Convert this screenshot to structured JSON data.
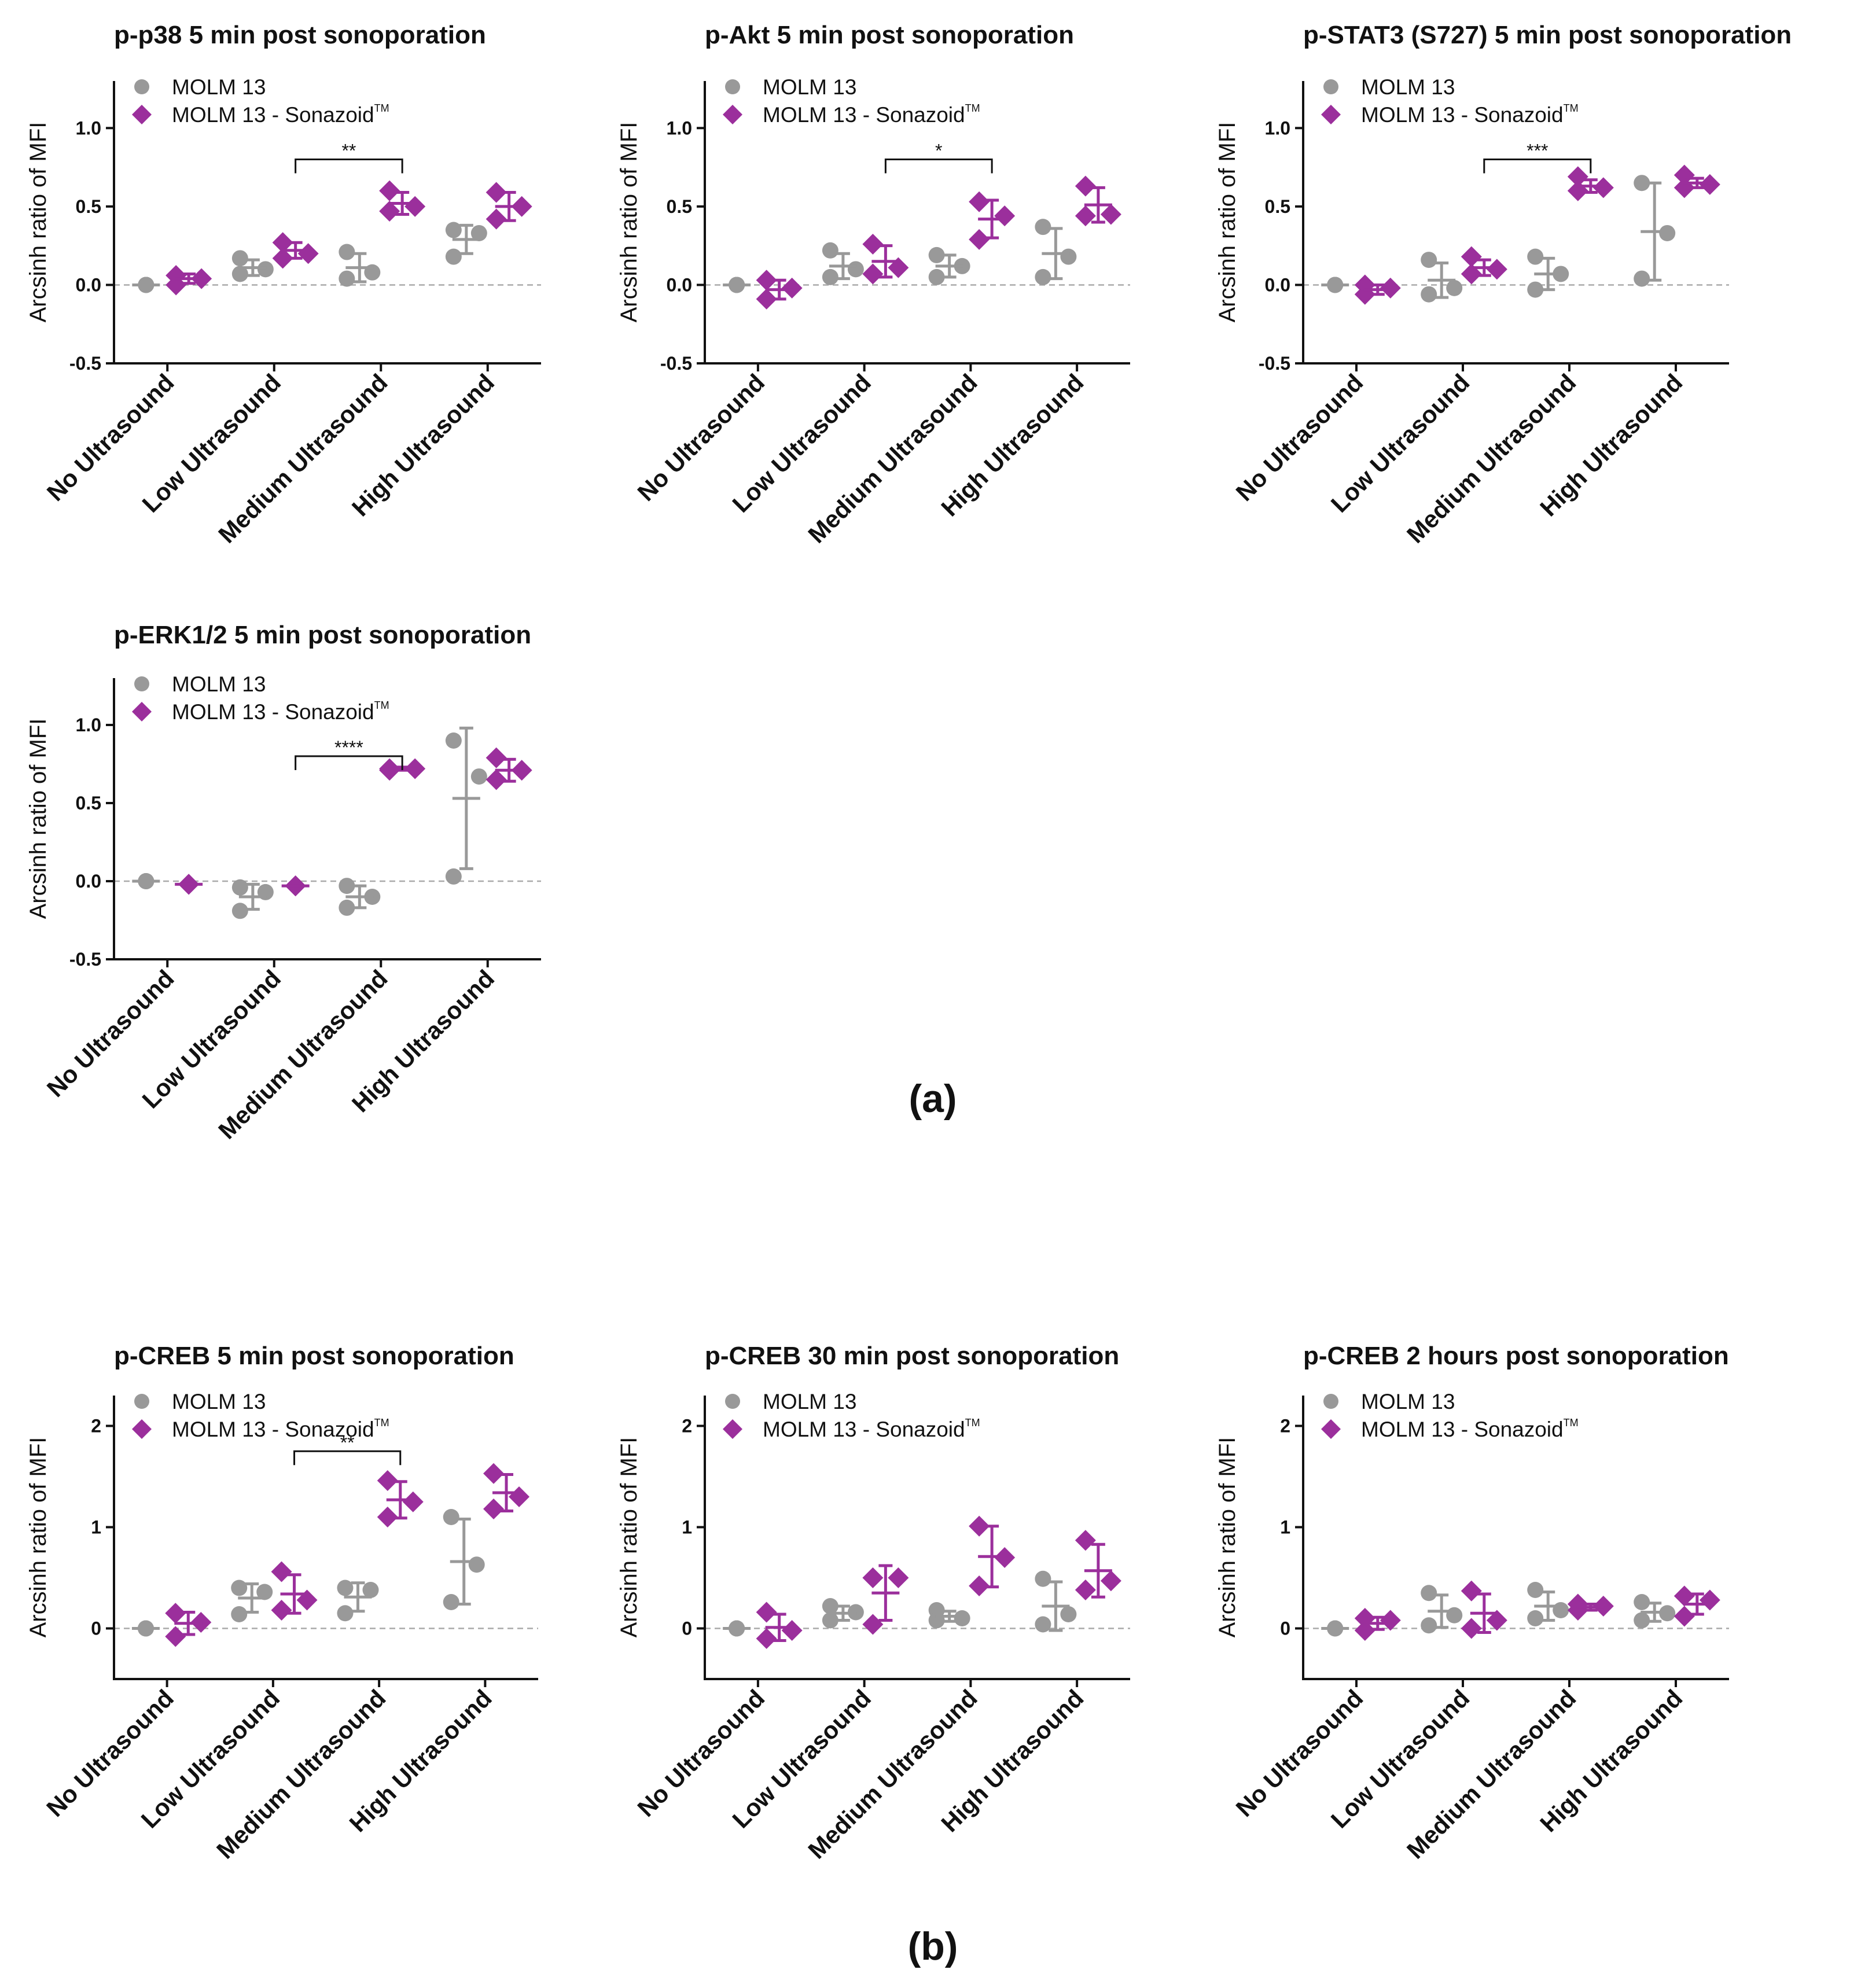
{
  "colors": {
    "molm13": "#999999",
    "sonazoid": "#9b2f9c",
    "zero_line": "#aaaaaa",
    "axis": "#111111"
  },
  "panel_labels": {
    "a": "(a)",
    "b": "(b)"
  },
  "chart_data": [
    {
      "type": "scatter",
      "title": "p-p38 5 min post sonoporation",
      "ylabel": "Arcsinh ratio of MFI",
      "ylim": [
        -0.5,
        1.3
      ],
      "yticks": [
        "-0.5",
        "0.0",
        "0.5",
        "1.0"
      ],
      "yticks_values": [
        -0.5,
        0,
        0.5,
        1.0
      ],
      "categories": [
        "No Ultrasound",
        "Low Ultrasound",
        "Medium Ultrasound",
        "High Ultrasound"
      ],
      "legend": [
        "MOLM 13",
        "MOLM 13 - Sonazoid",
        "TM"
      ],
      "series": [
        {
          "name": "MOLM 13",
          "marker": "circle",
          "points": [
            [
              0.0,
              0.0,
              0.0
            ],
            [
              0.17,
              0.07,
              0.1
            ],
            [
              0.21,
              0.04,
              0.08
            ],
            [
              0.35,
              0.18,
              0.33
            ]
          ],
          "mean": [
            0.0,
            0.11,
            0.11,
            0.29
          ],
          "err": [
            0.0,
            0.05,
            0.09,
            0.09
          ]
        },
        {
          "name": "MOLM 13 - Sonazoid",
          "marker": "diamond",
          "points": [
            [
              0.06,
              0.0,
              0.04
            ],
            [
              0.27,
              0.17,
              0.2
            ],
            [
              0.6,
              0.47,
              0.5
            ],
            [
              0.59,
              0.42,
              0.5
            ]
          ],
          "mean": [
            0.04,
            0.22,
            0.52,
            0.5
          ],
          "err": [
            0.03,
            0.05,
            0.07,
            0.09
          ]
        }
      ],
      "significance": [
        {
          "from": 1,
          "to": 2,
          "label": "**"
        }
      ]
    },
    {
      "type": "scatter",
      "title": "p-Akt 5 min post sonoporation",
      "ylabel": "Arcsinh ratio of MFI",
      "ylim": [
        -0.5,
        1.3
      ],
      "yticks": [
        "-0.5",
        "0.0",
        "0.5",
        "1.0"
      ],
      "yticks_values": [
        -0.5,
        0,
        0.5,
        1.0
      ],
      "categories": [
        "No Ultrasound",
        "Low Ultrasound",
        "Medium Ultrasound",
        "High Ultrasound"
      ],
      "legend": [
        "MOLM 13",
        "MOLM 13 - Sonazoid",
        "TM"
      ],
      "series": [
        {
          "name": "MOLM 13",
          "marker": "circle",
          "points": [
            [
              0.0,
              0.0,
              0.0
            ],
            [
              0.22,
              0.05,
              0.1
            ],
            [
              0.19,
              0.05,
              0.12
            ],
            [
              0.37,
              0.05,
              0.18
            ]
          ],
          "mean": [
            0.0,
            0.12,
            0.12,
            0.2
          ],
          "err": [
            0.0,
            0.08,
            0.07,
            0.16
          ]
        },
        {
          "name": "MOLM 13 - Sonazoid",
          "marker": "diamond",
          "points": [
            [
              0.03,
              -0.09,
              -0.02
            ],
            [
              0.26,
              0.07,
              0.11
            ],
            [
              0.53,
              0.29,
              0.44
            ],
            [
              0.63,
              0.44,
              0.45
            ]
          ],
          "mean": [
            -0.03,
            0.15,
            0.42,
            0.51
          ],
          "err": [
            0.06,
            0.1,
            0.12,
            0.11
          ]
        }
      ],
      "significance": [
        {
          "from": 1,
          "to": 2,
          "label": "*"
        }
      ]
    },
    {
      "type": "scatter",
      "title": "p-STAT3 (S727) 5 min post sonoporation",
      "ylabel": "Arcsinh ratio of MFI",
      "ylim": [
        -0.5,
        1.3
      ],
      "yticks": [
        "-0.5",
        "0.0",
        "0.5",
        "1.0"
      ],
      "yticks_values": [
        -0.5,
        0,
        0.5,
        1.0
      ],
      "categories": [
        "No Ultrasound",
        "Low Ultrasound",
        "Medium Ultrasound",
        "High Ultrasound"
      ],
      "legend": [
        "MOLM 13",
        "MOLM 13 - Sonazoid",
        "TM"
      ],
      "series": [
        {
          "name": "MOLM 13",
          "marker": "circle",
          "points": [
            [
              0.0,
              0.0,
              0.0
            ],
            [
              0.16,
              -0.06,
              -0.02
            ],
            [
              0.18,
              -0.03,
              0.07
            ],
            [
              0.65,
              0.04,
              0.33
            ]
          ],
          "mean": [
            0.0,
            0.03,
            0.07,
            0.34
          ],
          "err": [
            0.0,
            0.11,
            0.1,
            0.31
          ]
        },
        {
          "name": "MOLM 13 - Sonazoid",
          "marker": "diamond",
          "points": [
            [
              0.0,
              -0.06,
              -0.02
            ],
            [
              0.18,
              0.07,
              0.1
            ],
            [
              0.69,
              0.6,
              0.62
            ],
            [
              0.7,
              0.62,
              0.64
            ]
          ],
          "mean": [
            -0.03,
            0.11,
            0.63,
            0.65
          ],
          "err": [
            0.03,
            0.05,
            0.04,
            0.03
          ]
        }
      ],
      "significance": [
        {
          "from": 1,
          "to": 2,
          "label": "***"
        }
      ]
    },
    {
      "type": "scatter",
      "title": "p-ERK1/2 5 min post sonoporation",
      "ylabel": "Arcsinh ratio of MFI",
      "ylim": [
        -0.5,
        1.3
      ],
      "yticks": [
        "-0.5",
        "0.0",
        "0.5",
        "1.0"
      ],
      "yticks_values": [
        -0.5,
        0,
        0.5,
        1.0
      ],
      "categories": [
        "No Ultrasound",
        "Low Ultrasound",
        "Medium Ultrasound",
        "High Ultrasound"
      ],
      "legend": [
        "MOLM 13",
        "MOLM 13 - Sonazoid",
        "TM"
      ],
      "series": [
        {
          "name": "MOLM 13",
          "marker": "circle",
          "points": [
            [
              0.0,
              0.0,
              0.0
            ],
            [
              -0.04,
              -0.19,
              -0.07
            ],
            [
              -0.03,
              -0.17,
              -0.1
            ],
            [
              0.9,
              0.03,
              0.67
            ]
          ],
          "mean": [
            0.0,
            -0.1,
            -0.1,
            0.53
          ],
          "err": [
            0.0,
            0.08,
            0.07,
            0.45
          ]
        },
        {
          "name": "MOLM 13 - Sonazoid",
          "marker": "diamond",
          "points": [
            [
              -0.02,
              -0.02,
              -0.02
            ],
            [
              -0.03,
              -0.03,
              -0.03
            ],
            [
              0.71,
              0.72,
              0.72
            ],
            [
              0.79,
              0.65,
              0.71
            ]
          ],
          "mean": [
            -0.02,
            -0.03,
            0.72,
            0.71
          ],
          "err": [
            0.0,
            0.0,
            0.01,
            0.07
          ]
        }
      ],
      "significance": [
        {
          "from": 1,
          "to": 2,
          "label": "****"
        }
      ]
    },
    {
      "type": "scatter",
      "title": "p-CREB 5 min post sonoporation",
      "ylabel": "Arcsinh ratio of MFI",
      "ylim": [
        -0.5,
        2.3
      ],
      "yticks": [
        "0",
        "1",
        "2"
      ],
      "yticks_values": [
        0,
        1,
        2
      ],
      "categories": [
        "No Ultrasound",
        "Low Ultrasound",
        "Medium Ultrasound",
        "High Ultrasound"
      ],
      "legend": [
        "MOLM 13",
        "MOLM 13 - Sonazoid",
        "TM"
      ],
      "series": [
        {
          "name": "MOLM 13",
          "marker": "circle",
          "points": [
            [
              0.0,
              0.0,
              0.0
            ],
            [
              0.4,
              0.14,
              0.36
            ],
            [
              0.4,
              0.15,
              0.38
            ],
            [
              1.1,
              0.26,
              0.63
            ]
          ],
          "mean": [
            0.0,
            0.3,
            0.31,
            0.66
          ],
          "err": [
            0.0,
            0.14,
            0.14,
            0.42
          ]
        },
        {
          "name": "MOLM 13 - Sonazoid",
          "marker": "diamond",
          "points": [
            [
              0.15,
              -0.08,
              0.06
            ],
            [
              0.56,
              0.18,
              0.28
            ],
            [
              1.46,
              1.1,
              1.25
            ],
            [
              1.53,
              1.18,
              1.3
            ]
          ],
          "mean": [
            0.05,
            0.34,
            1.27,
            1.34
          ],
          "err": [
            0.11,
            0.19,
            0.18,
            0.18
          ]
        }
      ],
      "significance": [
        {
          "from": 1,
          "to": 2,
          "label": "**"
        }
      ]
    },
    {
      "type": "scatter",
      "title": "p-CREB 30 min post sonoporation",
      "ylabel": "Arcsinh ratio of MFI",
      "ylim": [
        -0.5,
        2.3
      ],
      "yticks": [
        "0",
        "1",
        "2"
      ],
      "yticks_values": [
        0,
        1,
        2
      ],
      "categories": [
        "No Ultrasound",
        "Low Ultrasound",
        "Medium Ultrasound",
        "High Ultrasound"
      ],
      "legend": [
        "MOLM 13",
        "MOLM 13 - Sonazoid",
        "TM"
      ],
      "series": [
        {
          "name": "MOLM 13",
          "marker": "circle",
          "points": [
            [
              0.0,
              0.0,
              0.0
            ],
            [
              0.22,
              0.08,
              0.16
            ],
            [
              0.18,
              0.08,
              0.1
            ],
            [
              0.49,
              0.04,
              0.14
            ]
          ],
          "mean": [
            0.0,
            0.15,
            0.12,
            0.22
          ],
          "err": [
            0.0,
            0.07,
            0.05,
            0.24
          ]
        },
        {
          "name": "MOLM 13 - Sonazoid",
          "marker": "diamond",
          "points": [
            [
              0.16,
              -0.1,
              -0.02
            ],
            [
              0.5,
              0.04,
              0.5
            ],
            [
              1.01,
              0.42,
              0.7
            ],
            [
              0.87,
              0.38,
              0.47
            ]
          ],
          "mean": [
            0.01,
            0.35,
            0.71,
            0.57
          ],
          "err": [
            0.13,
            0.27,
            0.3,
            0.26
          ]
        }
      ],
      "significance": []
    },
    {
      "type": "scatter",
      "title": "p-CREB 2 hours post sonoporation",
      "ylabel": "Arcsinh ratio of MFI",
      "ylim": [
        -0.5,
        2.3
      ],
      "yticks": [
        "0",
        "1",
        "2"
      ],
      "yticks_values": [
        0,
        1,
        2
      ],
      "categories": [
        "No Ultrasound",
        "Low Ultrasound",
        "Medium Ultrasound",
        "High Ultrasound"
      ],
      "legend": [
        "MOLM 13",
        "MOLM 13 - Sonazoid",
        "TM"
      ],
      "series": [
        {
          "name": "MOLM 13",
          "marker": "circle",
          "points": [
            [
              0.0,
              0.0,
              0.0
            ],
            [
              0.35,
              0.03,
              0.13
            ],
            [
              0.38,
              0.1,
              0.18
            ],
            [
              0.26,
              0.08,
              0.15
            ]
          ],
          "mean": [
            0.0,
            0.17,
            0.22,
            0.16
          ],
          "err": [
            0.0,
            0.16,
            0.14,
            0.09
          ]
        },
        {
          "name": "MOLM 13 - Sonazoid",
          "marker": "diamond",
          "points": [
            [
              0.1,
              -0.02,
              0.08
            ],
            [
              0.37,
              0.0,
              0.08
            ],
            [
              0.24,
              0.18,
              0.22
            ],
            [
              0.32,
              0.12,
              0.28
            ]
          ],
          "mean": [
            0.05,
            0.15,
            0.21,
            0.24
          ],
          "err": [
            0.06,
            0.19,
            0.03,
            0.1
          ]
        }
      ],
      "significance": []
    }
  ]
}
